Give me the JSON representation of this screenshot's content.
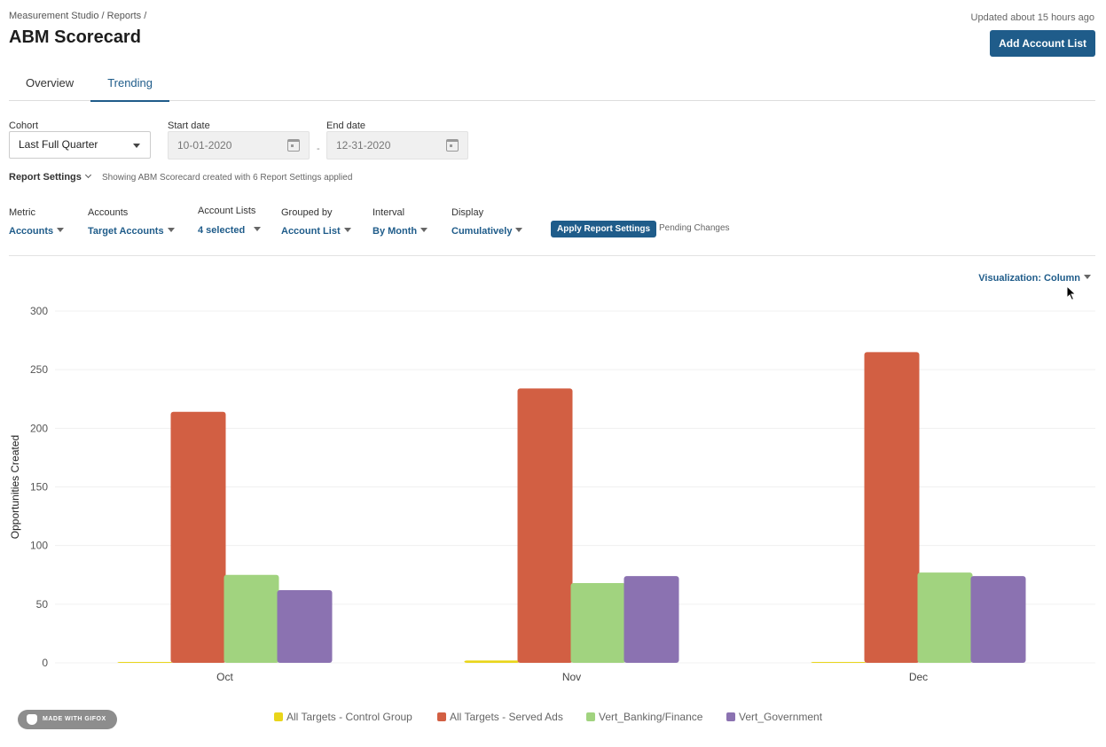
{
  "header": {
    "breadcrumb": "Measurement Studio / Reports /",
    "title": "ABM Scorecard",
    "updated": "Updated about 15 hours ago",
    "add_button": "Add Account List"
  },
  "tabs": [
    {
      "label": "Overview",
      "active": false
    },
    {
      "label": "Trending",
      "active": true
    }
  ],
  "filters": {
    "cohort_label": "Cohort",
    "cohort_value": "Last Full Quarter",
    "start_label": "Start date",
    "start_value": "10-01-2020",
    "end_label": "End date",
    "end_value": "12-31-2020",
    "date_separator": "-"
  },
  "report_settings": {
    "toggle_label": "Report Settings",
    "description": "Showing ABM Scorecard created with 6 Report Settings applied",
    "metric_label": "Metric",
    "metric_value": "Accounts",
    "accounts_label": "Accounts",
    "accounts_value": "Target Accounts",
    "account_lists_label": "Account Lists",
    "account_lists_value": "4 selected",
    "grouped_label": "Grouped by",
    "grouped_value": "Account List",
    "interval_label": "Interval",
    "interval_value": "By Month",
    "display_label": "Display",
    "display_value": "Cumulatively",
    "apply_button": "Apply Report Settings",
    "pending": "Pending Changes"
  },
  "visualization": {
    "label": "Visualization: Column"
  },
  "colors": {
    "accent": "#1f5c8a",
    "control_group": "#e9d51a",
    "served_ads": "#d25f43",
    "banking": "#a1d37f",
    "government": "#8b72b1"
  },
  "chart_data": {
    "type": "bar",
    "ylabel": "Opportunities Created",
    "xlabel": "",
    "ylim": [
      0,
      300
    ],
    "yticks": [
      0,
      50,
      100,
      150,
      200,
      250,
      300
    ],
    "categories": [
      "Oct",
      "Nov",
      "Dec"
    ],
    "legend_position": "bottom",
    "grid": true,
    "series": [
      {
        "name": "All Targets - Control Group",
        "color": "#e9d51a",
        "values": [
          0,
          2,
          0
        ]
      },
      {
        "name": "All Targets - Served Ads",
        "color": "#d25f43",
        "values": [
          214,
          234,
          265
        ]
      },
      {
        "name": "Vert_Banking/Finance",
        "color": "#a1d37f",
        "values": [
          75,
          68,
          77
        ]
      },
      {
        "name": "Vert_Government",
        "color": "#8b72b1",
        "values": [
          62,
          74,
          74
        ]
      }
    ]
  },
  "badge": {
    "text": "MADE WITH GIFOX"
  }
}
